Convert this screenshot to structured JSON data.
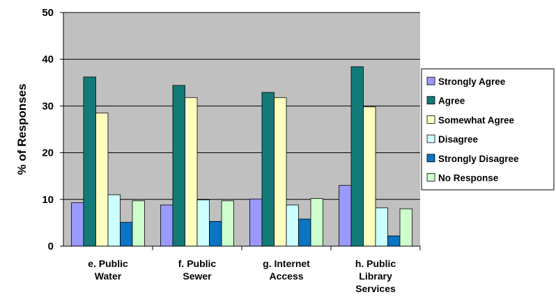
{
  "chart_data": {
    "type": "bar",
    "ylabel": "% of Responses",
    "ylim": [
      0,
      50
    ],
    "yticks": [
      0,
      10,
      20,
      30,
      40,
      50
    ],
    "grid": true,
    "legend_position": "right",
    "categories": [
      [
        "e.  Public",
        "Water"
      ],
      [
        "f.   Public",
        "Sewer"
      ],
      [
        "g.  Internet",
        "Access"
      ],
      [
        "h.  Public",
        "Library",
        "Services"
      ]
    ],
    "series": [
      {
        "name": "Strongly Agree",
        "color": "#9999ff",
        "values": [
          9.3,
          8.8,
          10.1,
          13.0
        ]
      },
      {
        "name": "Agree",
        "color": "#127b78",
        "values": [
          36.2,
          34.4,
          32.9,
          38.4
        ]
      },
      {
        "name": "Somewhat Agree",
        "color": "#ffffc0",
        "values": [
          28.5,
          31.8,
          31.8,
          29.8
        ]
      },
      {
        "name": "Disagree",
        "color": "#ccffff",
        "values": [
          11.0,
          9.9,
          8.8,
          8.2
        ]
      },
      {
        "name": " Strongly Disagree",
        "color": "#0b74c3",
        "values": [
          5.1,
          5.3,
          5.8,
          2.2
        ]
      },
      {
        "name": "No Response",
        "color": "#ccffcc",
        "values": [
          9.7,
          9.7,
          10.2,
          8.0
        ]
      }
    ]
  }
}
